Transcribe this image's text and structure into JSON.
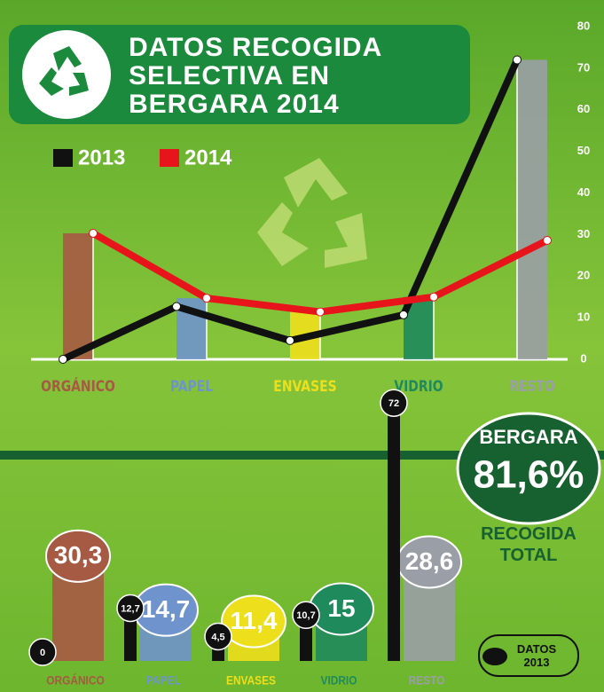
{
  "chart_data": [
    {
      "type": "line",
      "title": "DATOS RECOGIDA SELECTIVA EN BERGARA 2014",
      "categories": [
        "ORGÁNICO",
        "PAPEL",
        "ENVASES",
        "VIDRIO",
        "RESTO"
      ],
      "category_colors": [
        "#a65a44",
        "#6f93cc",
        "#eedf1c",
        "#1f8a5c",
        "#9a9ea6"
      ],
      "series": [
        {
          "name": "2013",
          "color": "#111111",
          "values": [
            0,
            12.7,
            4.5,
            10.7,
            72
          ]
        },
        {
          "name": "2014",
          "color": "#e8141c",
          "values": [
            30.3,
            14.7,
            11.4,
            15,
            28.6
          ]
        }
      ],
      "ylim": [
        0,
        80
      ],
      "yticks": [
        0,
        10,
        20,
        30,
        40,
        50,
        60,
        70,
        80
      ]
    },
    {
      "type": "bar",
      "categories": [
        "ORGÁNICO",
        "PAPEL",
        "ENVASES",
        "VIDRIO",
        "RESTO"
      ],
      "category_colors": [
        "#a65a44",
        "#6f93cc",
        "#eedf1c",
        "#1f8a5c",
        "#9a9ea6"
      ],
      "series": [
        {
          "name": "2013",
          "color": "#111111",
          "values": [
            0,
            12.7,
            4.5,
            10.7,
            72
          ],
          "value_labels": [
            "0",
            "12,7",
            "4,5",
            "10,7",
            "72"
          ]
        },
        {
          "name": "2014",
          "color": "category",
          "values": [
            30.3,
            14.7,
            11.4,
            15,
            28.6
          ],
          "value_labels": [
            "30,3",
            "14,7",
            "11,4",
            "15",
            "28,6"
          ]
        }
      ],
      "legend_label": "DATOS 2013",
      "total": {
        "name": "BERGARA",
        "value": 81.6,
        "value_label": "81,6%",
        "caption": "RECOGIDA TOTAL"
      }
    }
  ]
}
